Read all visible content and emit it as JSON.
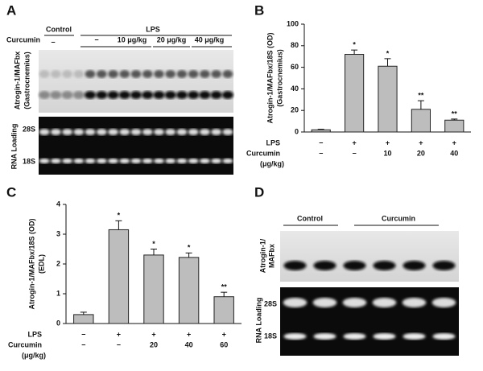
{
  "panel_a": {
    "letter": "A",
    "group_control": "Control",
    "group_lps": "LPS",
    "curcumin_label": "Curcumin",
    "doses": [
      "−",
      "−",
      "10 μg/kg",
      "20 μg/kg",
      "40 μg/kg"
    ],
    "blot_label": "Atrogin-1/MAFbx",
    "blot_sublabel": "(Gastrocnemius)",
    "loading_label": "RNA Loading",
    "band_28s": "28S",
    "band_18s": "18S"
  },
  "chart_data": [
    {
      "type": "bar",
      "letter": "B",
      "y_label": "Atrogin-1/MAFbx/18S (OD)",
      "y_sublabel": "(Gastrocnemius)",
      "values": [
        2,
        72,
        61,
        21,
        11
      ],
      "errors": [
        0.5,
        4,
        7,
        8,
        1
      ],
      "annotations": [
        null,
        "*",
        "*",
        "**",
        "**"
      ],
      "color": "#bdbdbd",
      "ylim": [
        0,
        100
      ],
      "yticks": [
        0,
        20,
        40,
        60,
        80,
        100
      ],
      "condition_rows": [
        {
          "label": "LPS",
          "values": [
            "−",
            "+",
            "+",
            "+",
            "+"
          ]
        },
        {
          "label": "Curcumin",
          "sublabel": "(μg/kg)",
          "values": [
            "−",
            "−",
            "10",
            "20",
            "40"
          ]
        }
      ]
    },
    {
      "type": "bar",
      "letter": "C",
      "y_label": "Atrogin-1/MAFbx/18S (OD)",
      "y_sublabel": "(EDL)",
      "values": [
        0.3,
        3.15,
        2.3,
        2.22,
        0.9
      ],
      "errors": [
        0.08,
        0.3,
        0.2,
        0.15,
        0.15
      ],
      "annotations": [
        null,
        "*",
        "*",
        "*",
        "**"
      ],
      "color": "#bdbdbd",
      "ylim": [
        0,
        4
      ],
      "yticks": [
        0,
        1,
        2,
        3,
        4
      ],
      "condition_rows": [
        {
          "label": "LPS",
          "values": [
            "−",
            "+",
            "+",
            "+",
            "+"
          ]
        },
        {
          "label": "Curcumin",
          "sublabel": "(μg/kg)",
          "values": [
            "−",
            "−",
            "20",
            "40",
            "60"
          ]
        }
      ]
    }
  ],
  "panel_d": {
    "letter": "D",
    "group_control": "Control",
    "group_curcumin": "Curcumin",
    "blot_label": "Atrogin-1/",
    "blot_label2": "MAFbx",
    "loading_label": "RNA Loading",
    "band_28s": "28S",
    "band_18s": "18S"
  }
}
